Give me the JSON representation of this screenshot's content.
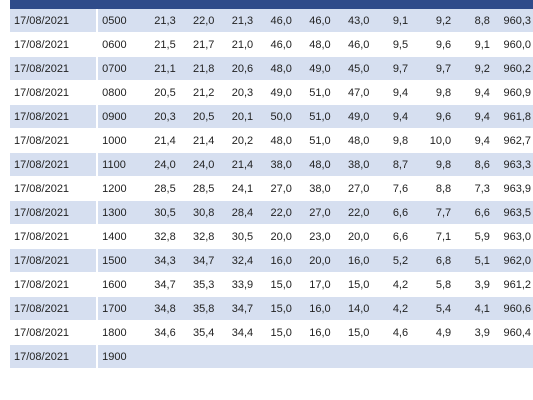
{
  "table": {
    "rows": [
      [
        "17/08/2021",
        "0500",
        "21,3",
        "22,0",
        "21,3",
        "46,0",
        "46,0",
        "43,0",
        "9,1",
        "9,2",
        "8,8",
        "960,3"
      ],
      [
        "17/08/2021",
        "0600",
        "21,5",
        "21,7",
        "21,0",
        "46,0",
        "48,0",
        "46,0",
        "9,5",
        "9,6",
        "9,1",
        "960,0"
      ],
      [
        "17/08/2021",
        "0700",
        "21,1",
        "21,8",
        "20,6",
        "48,0",
        "49,0",
        "45,0",
        "9,7",
        "9,7",
        "9,2",
        "960,2"
      ],
      [
        "17/08/2021",
        "0800",
        "20,5",
        "21,2",
        "20,3",
        "49,0",
        "51,0",
        "47,0",
        "9,4",
        "9,8",
        "9,4",
        "960,9"
      ],
      [
        "17/08/2021",
        "0900",
        "20,3",
        "20,5",
        "20,1",
        "50,0",
        "51,0",
        "49,0",
        "9,4",
        "9,6",
        "9,4",
        "961,8"
      ],
      [
        "17/08/2021",
        "1000",
        "21,4",
        "21,4",
        "20,2",
        "48,0",
        "51,0",
        "48,0",
        "9,8",
        "10,0",
        "9,4",
        "962,7"
      ],
      [
        "17/08/2021",
        "1100",
        "24,0",
        "24,0",
        "21,4",
        "38,0",
        "48,0",
        "38,0",
        "8,7",
        "9,8",
        "8,6",
        "963,3"
      ],
      [
        "17/08/2021",
        "1200",
        "28,5",
        "28,5",
        "24,1",
        "27,0",
        "38,0",
        "27,0",
        "7,6",
        "8,8",
        "7,3",
        "963,9"
      ],
      [
        "17/08/2021",
        "1300",
        "30,5",
        "30,8",
        "28,4",
        "22,0",
        "27,0",
        "22,0",
        "6,6",
        "7,7",
        "6,6",
        "963,5"
      ],
      [
        "17/08/2021",
        "1400",
        "32,8",
        "32,8",
        "30,5",
        "20,0",
        "23,0",
        "20,0",
        "6,6",
        "7,1",
        "5,9",
        "963,0"
      ],
      [
        "17/08/2021",
        "1500",
        "34,3",
        "34,7",
        "32,4",
        "16,0",
        "20,0",
        "16,0",
        "5,2",
        "6,8",
        "5,1",
        "962,0"
      ],
      [
        "17/08/2021",
        "1600",
        "34,7",
        "35,3",
        "33,9",
        "15,0",
        "17,0",
        "15,0",
        "4,2",
        "5,8",
        "3,9",
        "961,2"
      ],
      [
        "17/08/2021",
        "1700",
        "34,8",
        "35,8",
        "34,7",
        "15,0",
        "16,0",
        "14,0",
        "4,2",
        "5,4",
        "4,1",
        "960,6"
      ],
      [
        "17/08/2021",
        "1800",
        "34,6",
        "35,4",
        "34,4",
        "15,0",
        "16,0",
        "15,0",
        "4,6",
        "4,9",
        "3,9",
        "960,4"
      ],
      [
        "17/08/2021",
        "1900",
        "",
        "",
        "",
        "",
        "",
        "",
        "",
        "",
        "",
        ""
      ]
    ]
  },
  "colors": {
    "header_bar": "#2f4b8a",
    "row_shade": "#d6dff0"
  }
}
